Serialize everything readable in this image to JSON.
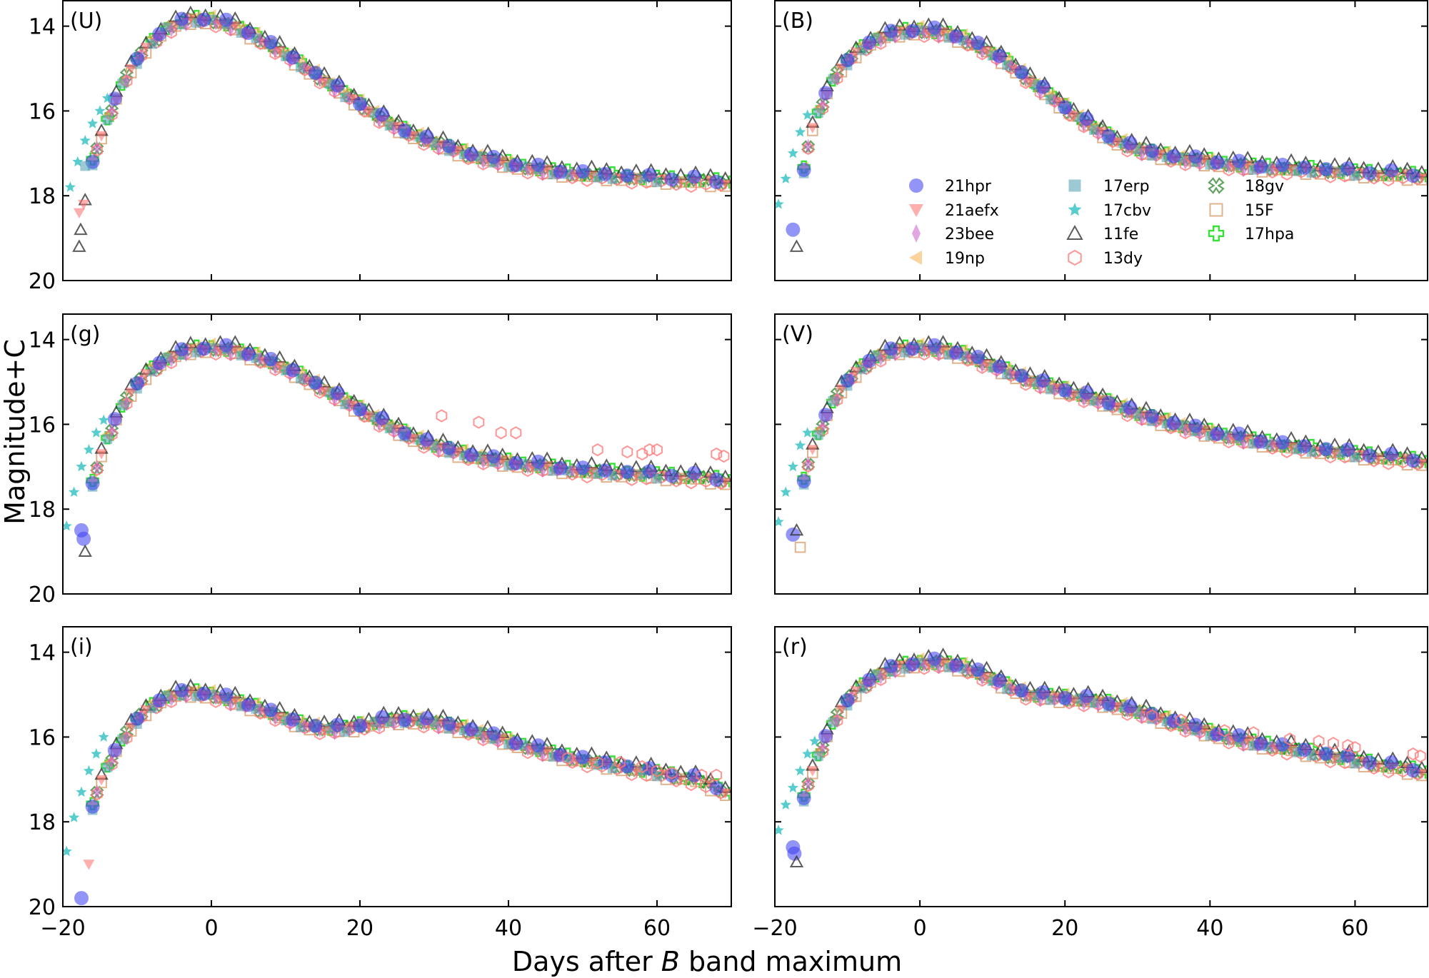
{
  "figure": {
    "xlabel_prefix": "Days after ",
    "xlabel_italic": "B",
    "xlabel_suffix": " band maximum",
    "ylabel": "Magnitude+C"
  },
  "legend": {
    "placement": "inside B panel, lower-right",
    "entries": [
      {
        "name": "21hpr",
        "marker": "circle",
        "color": "#3a3cf0"
      },
      {
        "name": "21aefx",
        "marker": "triangle-down",
        "color": "#ff6b6b"
      },
      {
        "name": "23bee",
        "marker": "thin-diamond",
        "color": "#cc5ccc"
      },
      {
        "name": "19np",
        "marker": "triangle-left",
        "color": "#f5b04a"
      },
      {
        "name": "17erp",
        "marker": "square",
        "color": "#4d9db3"
      },
      {
        "name": "17cbv",
        "marker": "star",
        "color": "#30c0c0"
      },
      {
        "name": "11fe",
        "marker": "triangle-up-open",
        "color": "#333333"
      },
      {
        "name": "13dy",
        "marker": "hexagon-open",
        "color": "#ff7a7a"
      },
      {
        "name": "18gv",
        "marker": "x-open",
        "color": "#3d8a3d"
      },
      {
        "name": "15F",
        "marker": "square-open",
        "color": "#d8a070"
      },
      {
        "name": "17hpa",
        "marker": "plus-open",
        "color": "#22dd22"
      }
    ]
  },
  "chart_data": [
    {
      "type": "scatter",
      "band": "U",
      "label": "(U)",
      "xlim": [
        -20,
        70
      ],
      "ylim": [
        20,
        13.4
      ],
      "xticks": [
        -20,
        0,
        20,
        40,
        60
      ],
      "yticks": [
        14,
        16,
        18,
        20
      ],
      "xtick_labels": [
        "",
        "",
        "",
        "",
        ""
      ],
      "ytick_labels": [
        "14",
        "16",
        "18",
        "20"
      ],
      "curve": {
        "x": [
          -17.5,
          -15,
          -12,
          -9,
          -6,
          -3,
          0,
          3,
          6,
          9,
          12,
          15,
          18,
          21,
          24,
          27,
          30,
          35,
          40,
          45,
          50,
          55,
          60,
          65,
          70
        ],
        "y": [
          18.0,
          16.6,
          15.3,
          14.5,
          14.0,
          13.8,
          13.8,
          13.95,
          14.2,
          14.5,
          14.85,
          15.2,
          15.55,
          15.9,
          16.25,
          16.5,
          16.7,
          17.0,
          17.2,
          17.35,
          17.45,
          17.5,
          17.55,
          17.6,
          17.65
        ]
      },
      "extra": [
        {
          "series": "17cbv",
          "x": [
            -19,
            -18,
            -17,
            -16,
            -15,
            -14
          ],
          "y": [
            17.8,
            17.2,
            16.7,
            16.3,
            16.0,
            15.7
          ]
        },
        {
          "series": "11fe",
          "x": [
            -17.8,
            -17.6,
            -17
          ],
          "y": [
            19.2,
            18.8,
            18.1
          ]
        },
        {
          "series": "21aefx",
          "x": [
            -17.8,
            -17.2
          ],
          "y": [
            18.4,
            18.2
          ]
        },
        {
          "series": "17erp",
          "x": [
            -17
          ],
          "y": [
            17.3
          ]
        }
      ]
    },
    {
      "type": "scatter",
      "band": "B",
      "label": "(B)",
      "xlim": [
        -20,
        70
      ],
      "ylim": [
        20,
        13.4
      ],
      "xticks": [
        -20,
        0,
        20,
        40,
        60
      ],
      "yticks": [
        14,
        16,
        18,
        20
      ],
      "xtick_labels": [
        "",
        "",
        "",
        "",
        ""
      ],
      "ytick_labels": [
        "",
        "",
        "",
        ""
      ],
      "curve": {
        "x": [
          -17,
          -15,
          -12,
          -9,
          -6,
          -3,
          0,
          3,
          6,
          9,
          12,
          15,
          18,
          21,
          24,
          27,
          30,
          35,
          40,
          45,
          50,
          55,
          60,
          65,
          70
        ],
        "y": [
          18.3,
          16.4,
          15.2,
          14.6,
          14.25,
          14.1,
          14.05,
          14.1,
          14.25,
          14.5,
          14.8,
          15.2,
          15.6,
          16.0,
          16.35,
          16.65,
          16.85,
          17.05,
          17.15,
          17.25,
          17.3,
          17.35,
          17.4,
          17.45,
          17.5
        ]
      },
      "extra": [
        {
          "series": "17cbv",
          "x": [
            -19.5,
            -18.5,
            -17.5,
            -16.5,
            -15.5
          ],
          "y": [
            18.2,
            17.6,
            17.0,
            16.5,
            16.1
          ]
        },
        {
          "series": "21hpr",
          "x": [
            -17.5
          ],
          "y": [
            18.8
          ]
        },
        {
          "series": "11fe",
          "x": [
            -17
          ],
          "y": [
            19.2
          ]
        }
      ]
    },
    {
      "type": "scatter",
      "band": "g",
      "label": "(g)",
      "xlim": [
        -20,
        70
      ],
      "ylim": [
        20,
        13.4
      ],
      "xticks": [
        -20,
        0,
        20,
        40,
        60
      ],
      "yticks": [
        14,
        16,
        18,
        20
      ],
      "xtick_labels": [
        "",
        "",
        "",
        "",
        ""
      ],
      "ytick_labels": [
        "14",
        "16",
        "18",
        "20"
      ],
      "curve": {
        "x": [
          -17,
          -15,
          -12,
          -9,
          -6,
          -3,
          0,
          3,
          6,
          9,
          12,
          15,
          18,
          21,
          24,
          27,
          30,
          35,
          40,
          45,
          50,
          55,
          60,
          65,
          70
        ],
        "y": [
          18.0,
          16.7,
          15.5,
          14.8,
          14.4,
          14.2,
          14.15,
          14.2,
          14.35,
          14.55,
          14.8,
          15.1,
          15.4,
          15.7,
          16.0,
          16.25,
          16.45,
          16.7,
          16.85,
          16.95,
          17.05,
          17.1,
          17.15,
          17.2,
          17.3
        ]
      },
      "extra": [
        {
          "series": "17cbv",
          "x": [
            -19.5,
            -18.5,
            -17.5,
            -16.5,
            -15.5,
            -14.5
          ],
          "y": [
            18.4,
            17.6,
            17.0,
            16.6,
            16.2,
            15.9
          ]
        },
        {
          "series": "21hpr",
          "x": [
            -17.5,
            -17.2
          ],
          "y": [
            18.5,
            18.7
          ]
        },
        {
          "series": "11fe",
          "x": [
            -17
          ],
          "y": [
            19.0
          ]
        },
        {
          "series": "13dy",
          "x": [
            31,
            36,
            39,
            41,
            52,
            56,
            58,
            59,
            60,
            68,
            69
          ],
          "y": [
            15.8,
            15.95,
            16.2,
            16.2,
            16.6,
            16.65,
            16.7,
            16.6,
            16.6,
            16.7,
            16.75
          ]
        }
      ]
    },
    {
      "type": "scatter",
      "band": "V",
      "label": "(V)",
      "xlim": [
        -20,
        70
      ],
      "ylim": [
        20,
        13.4
      ],
      "xticks": [
        -20,
        0,
        20,
        40,
        60
      ],
      "yticks": [
        14,
        16,
        18,
        20
      ],
      "xtick_labels": [
        "",
        "",
        "",
        "",
        ""
      ],
      "ytick_labels": [
        "",
        "",
        "",
        ""
      ],
      "curve": {
        "x": [
          -17,
          -15,
          -12,
          -9,
          -6,
          -3,
          0,
          3,
          6,
          9,
          12,
          15,
          18,
          21,
          24,
          27,
          30,
          35,
          40,
          45,
          50,
          55,
          60,
          65,
          70
        ],
        "y": [
          18.0,
          16.6,
          15.4,
          14.75,
          14.35,
          14.2,
          14.15,
          14.2,
          14.3,
          14.5,
          14.7,
          14.9,
          15.05,
          15.2,
          15.35,
          15.5,
          15.7,
          15.95,
          16.15,
          16.3,
          16.45,
          16.55,
          16.65,
          16.75,
          16.85
        ]
      },
      "extra": [
        {
          "series": "17cbv",
          "x": [
            -19.5,
            -18.5,
            -17.5,
            -16.5,
            -15.5
          ],
          "y": [
            18.3,
            17.6,
            17.0,
            16.5,
            16.2
          ]
        },
        {
          "series": "21hpr",
          "x": [
            -17.5
          ],
          "y": [
            18.6
          ]
        },
        {
          "series": "11fe",
          "x": [
            -17
          ],
          "y": [
            18.5
          ]
        },
        {
          "series": "15F",
          "x": [
            -16.5
          ],
          "y": [
            18.9
          ]
        }
      ]
    },
    {
      "type": "scatter",
      "band": "i",
      "label": "(i)",
      "xlim": [
        -20,
        70
      ],
      "ylim": [
        20,
        13.4
      ],
      "xticks": [
        -20,
        0,
        20,
        40,
        60
      ],
      "yticks": [
        14,
        16,
        18,
        20
      ],
      "xtick_labels": [
        "−20",
        "0",
        "20",
        "40",
        "60"
      ],
      "ytick_labels": [
        "14",
        "16",
        "18",
        "20"
      ],
      "curve": {
        "x": [
          -17,
          -15,
          -12,
          -9,
          -6,
          -3,
          0,
          3,
          6,
          9,
          12,
          15,
          18,
          21,
          24,
          27,
          30,
          35,
          40,
          45,
          50,
          55,
          60,
          65,
          70
        ],
        "y": [
          18.2,
          17.0,
          16.0,
          15.35,
          15.0,
          14.9,
          14.95,
          15.1,
          15.25,
          15.45,
          15.65,
          15.75,
          15.75,
          15.65,
          15.55,
          15.55,
          15.6,
          15.8,
          16.05,
          16.3,
          16.5,
          16.65,
          16.8,
          16.95,
          17.3
        ]
      },
      "extra": [
        {
          "series": "17cbv",
          "x": [
            -19.5,
            -18.5,
            -17.5,
            -16.5,
            -15.5,
            -14.5
          ],
          "y": [
            18.7,
            17.9,
            17.3,
            16.8,
            16.4,
            16.0
          ]
        },
        {
          "series": "21hpr",
          "x": [
            -17.5
          ],
          "y": [
            19.8
          ]
        },
        {
          "series": "21aefx",
          "x": [
            -16.5
          ],
          "y": [
            19.0
          ]
        },
        {
          "series": "13dy",
          "x": [
            48,
            52,
            55,
            58,
            60,
            62,
            66,
            68
          ],
          "y": [
            16.5,
            16.6,
            16.6,
            16.7,
            16.8,
            16.85,
            16.9,
            16.9
          ]
        }
      ]
    },
    {
      "type": "scatter",
      "band": "r",
      "label": "(r)",
      "xlim": [
        -20,
        70
      ],
      "ylim": [
        20,
        13.4
      ],
      "xticks": [
        -20,
        0,
        20,
        40,
        60
      ],
      "yticks": [
        14,
        16,
        18,
        20
      ],
      "xtick_labels": [
        "−20",
        "0",
        "20",
        "40",
        "60"
      ],
      "ytick_labels": [
        "",
        "",
        "",
        ""
      ],
      "curve": {
        "x": [
          -17,
          -15,
          -12,
          -9,
          -6,
          -3,
          0,
          3,
          6,
          9,
          12,
          15,
          18,
          21,
          24,
          27,
          30,
          35,
          40,
          45,
          50,
          55,
          60,
          65,
          70
        ],
        "y": [
          18.0,
          16.8,
          15.6,
          14.9,
          14.5,
          14.3,
          14.2,
          14.2,
          14.3,
          14.5,
          14.75,
          14.95,
          15.0,
          15.05,
          15.1,
          15.2,
          15.35,
          15.6,
          15.85,
          16.05,
          16.2,
          16.35,
          16.5,
          16.65,
          16.8
        ]
      },
      "extra": [
        {
          "series": "17cbv",
          "x": [
            -19.5,
            -18.5,
            -17.5,
            -16.5,
            -15.5,
            -14.5
          ],
          "y": [
            18.2,
            17.6,
            17.2,
            16.8,
            16.4,
            16.1
          ]
        },
        {
          "series": "21hpr",
          "x": [
            -17.5,
            -17.3
          ],
          "y": [
            18.6,
            18.75
          ]
        },
        {
          "series": "11fe",
          "x": [
            -17
          ],
          "y": [
            18.95
          ]
        },
        {
          "series": "13dy",
          "x": [
            32,
            36,
            42,
            46,
            51,
            55,
            57,
            59,
            60,
            68,
            69
          ],
          "y": [
            15.5,
            15.6,
            15.85,
            15.9,
            16.05,
            16.1,
            16.15,
            16.2,
            16.25,
            16.4,
            16.45
          ]
        }
      ]
    }
  ]
}
